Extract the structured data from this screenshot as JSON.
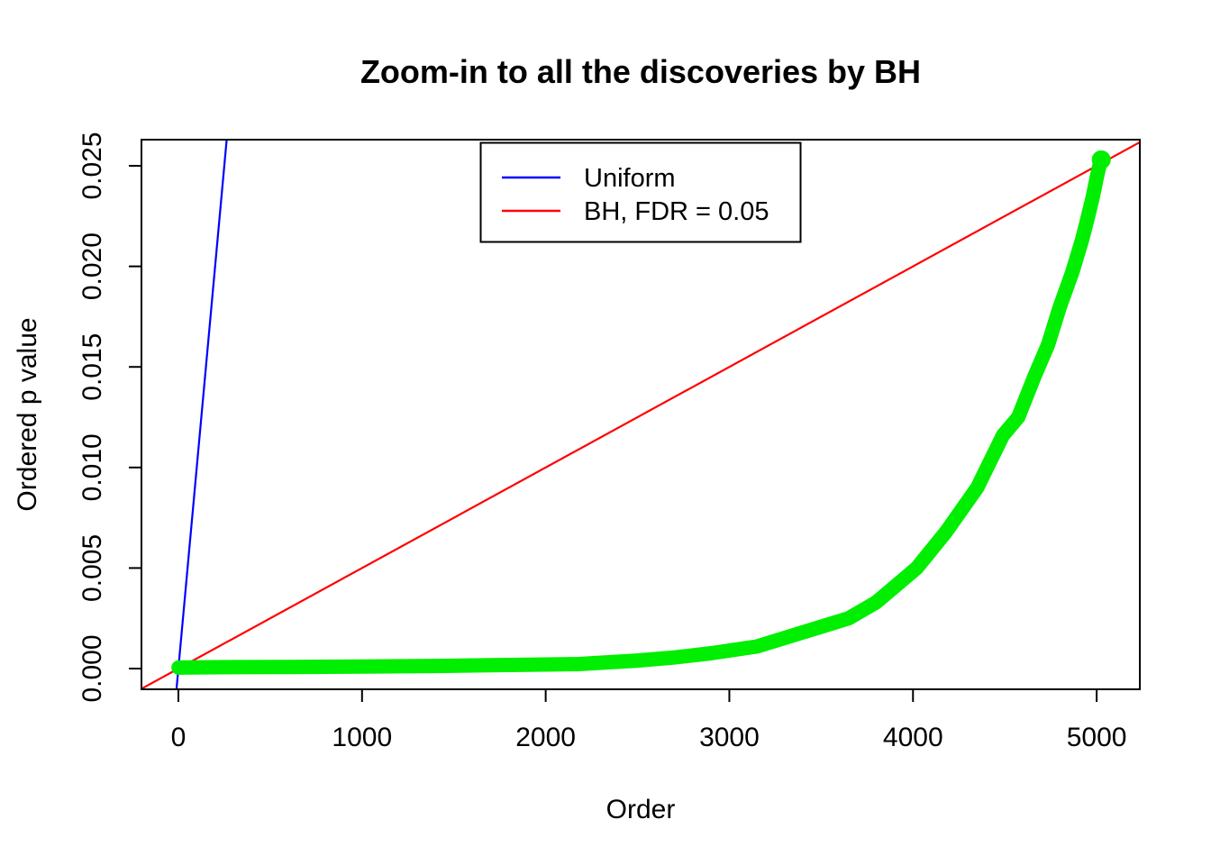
{
  "chart_data": {
    "type": "scatter",
    "title": "Zoom-in to all the discoveries by BH",
    "xlabel": "Order",
    "ylabel": "Ordered p value",
    "xlim": [
      -201,
      5235
    ],
    "ylim": [
      -0.00103,
      0.0263
    ],
    "x_ticks": [
      0,
      1000,
      2000,
      3000,
      4000,
      5000
    ],
    "x_tick_labels": [
      "0",
      "1000",
      "2000",
      "3000",
      "4000",
      "5000"
    ],
    "y_ticks": [
      0.0,
      0.005,
      0.01,
      0.015,
      0.02,
      0.025
    ],
    "y_tick_labels": [
      "0.000",
      "0.005",
      "0.010",
      "0.015",
      "0.020",
      "0.025"
    ],
    "grid": false,
    "box": true,
    "legend": {
      "position": "top-center",
      "entries": [
        {
          "label": "Uniform",
          "color": "#0000ff"
        },
        {
          "label": "BH, FDR = 0.05",
          "color": "#ff0000"
        }
      ]
    },
    "reference_lines": [
      {
        "name": "uniform-expected-line",
        "color": "#0000ff",
        "intercept": 0,
        "slope": 0.0001
      },
      {
        "name": "bh-threshold-line",
        "color": "#ff0000",
        "intercept": 0,
        "slope": 5e-06
      }
    ],
    "series": [
      {
        "name": "ordered-p-values-of-BH-discoveries",
        "color": "#00ee00",
        "style": "thick-point-band",
        "n_points_approx": 5025,
        "points": [
          [
            1,
            5e-05
          ],
          [
            300,
            7e-05
          ],
          [
            600,
            8e-05
          ],
          [
            1000,
            0.0001
          ],
          [
            1400,
            0.00013
          ],
          [
            1800,
            0.00018
          ],
          [
            2170,
            0.00022
          ],
          [
            2500,
            0.0004
          ],
          [
            2700,
            0.00055
          ],
          [
            2900,
            0.00076
          ],
          [
            3150,
            0.0011
          ],
          [
            3400,
            0.0018
          ],
          [
            3650,
            0.0025
          ],
          [
            3800,
            0.0033
          ],
          [
            4020,
            0.005
          ],
          [
            4180,
            0.0068
          ],
          [
            4350,
            0.009
          ],
          [
            4490,
            0.0116
          ],
          [
            4573,
            0.0125
          ],
          [
            4660,
            0.0145
          ],
          [
            4735,
            0.0161
          ],
          [
            4800,
            0.018
          ],
          [
            4867,
            0.0197
          ],
          [
            4920,
            0.0213
          ],
          [
            4951,
            0.0224
          ],
          [
            4980,
            0.0235
          ],
          [
            5000,
            0.0244
          ],
          [
            5015,
            0.025
          ],
          [
            5025,
            0.0253
          ]
        ]
      }
    ],
    "colors": {
      "background": "#ffffff",
      "axis": "#000000",
      "uniform_line": "#0000ff",
      "bh_line": "#ff0000",
      "discoveries": "#00ee00"
    }
  }
}
